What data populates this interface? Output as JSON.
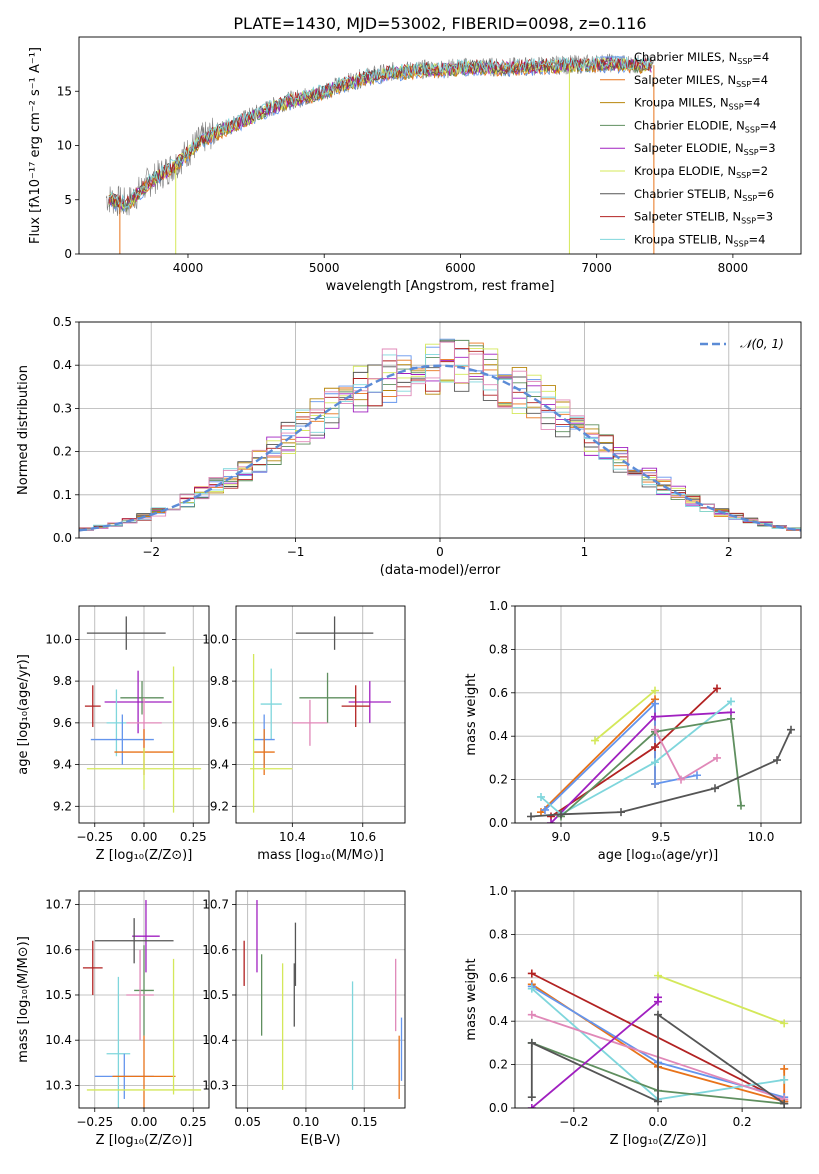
{
  "title": "PLATE=1430, MJD=53002, FIBERID=0098, z=0.116",
  "colors": {
    "blue": "#6495ed",
    "orange": "#e8731a",
    "brown": "#b8860b",
    "green": "#5f8f5f",
    "purple": "#a020c0",
    "yellow": "#d4e85a",
    "grey": "#555555",
    "red": "#b22222",
    "cyan": "#7fd6dc",
    "pink": "#e088b8",
    "darkgreen": "#4e7e5e"
  },
  "chart_data": [
    {
      "id": "spectrum",
      "type": "line",
      "xlabel": "wavelength [Angstrom, rest frame]",
      "ylabel": "Flux [fλ10⁻¹⁷ erg cm⁻² s⁻¹ A⁻¹]",
      "xlim": [
        3200,
        8500
      ],
      "ylim": [
        0,
        20
      ],
      "xticks": [
        4000,
        5000,
        6000,
        7000,
        8000
      ],
      "yticks": [
        0,
        5,
        10,
        15
      ],
      "legend": "upper-right",
      "series": [
        {
          "name": "Chabrier MILES, N",
          "suffix": "=4",
          "color": "#6495ed"
        },
        {
          "name": "Salpeter MILES, N",
          "suffix": "=4",
          "color": "#e8731a"
        },
        {
          "name": "Kroupa MILES, N",
          "suffix": "=4",
          "color": "#b8860b"
        },
        {
          "name": "Chabrier ELODIE, N",
          "suffix": "=4",
          "color": "#5f8f5f"
        },
        {
          "name": "Salpeter ELODIE, N",
          "suffix": "=3",
          "color": "#a020c0"
        },
        {
          "name": "Kroupa ELODIE, N",
          "suffix": "=2",
          "color": "#d4e85a"
        },
        {
          "name": "Chabrier STELIB, N",
          "suffix": "=6",
          "color": "#555555"
        },
        {
          "name": "Salpeter STELIB, N",
          "suffix": "=3",
          "color": "#b22222"
        },
        {
          "name": "Kroupa STELIB, N",
          "suffix": "=4",
          "color": "#7fd6dc"
        }
      ],
      "legend_sub": "SSP",
      "continuum": {
        "x": [
          3400,
          3550,
          3700,
          3900,
          4100,
          4300,
          4500,
          4700,
          4900,
          5100,
          5300,
          5500,
          5700,
          5900,
          6100,
          6300,
          6500,
          6700,
          6900,
          7100,
          7300,
          7400
        ],
        "y": [
          5.2,
          4.6,
          6.5,
          8.2,
          10.6,
          11.8,
          12.9,
          14.0,
          14.6,
          15.5,
          16.3,
          16.8,
          17.0,
          17.1,
          17.3,
          17.2,
          17.3,
          17.4,
          17.5,
          17.6,
          17.5,
          17.4
        ]
      }
    },
    {
      "id": "residuals",
      "type": "histogram",
      "xlabel": "(data-model)/error",
      "ylabel": "Normed distribution",
      "xlim": [
        -2.5,
        2.5
      ],
      "ylim": [
        0,
        0.5
      ],
      "xticks": [
        -2,
        -1,
        0,
        1,
        2
      ],
      "yticks": [
        0.0,
        0.1,
        0.2,
        0.3,
        0.4,
        0.5
      ],
      "legend_label": "𝒩(0, 1)",
      "grid": true
    },
    {
      "id": "age-vs-Z",
      "type": "scatter",
      "xlabel": "Z [log₁₀(Z/Z⊙)]",
      "ylabel": "age  [log₁₀(age/yr)]",
      "xlim": [
        -0.33,
        0.33
      ],
      "ylim": [
        9.12,
        10.16
      ],
      "xticks": [
        -0.25,
        0.0,
        0.25
      ],
      "yticks": [
        9.2,
        9.4,
        9.6,
        9.8,
        10.0
      ],
      "points": [
        {
          "x": -0.09,
          "y": 10.03,
          "xerr": 0.2,
          "yerr": 0.08,
          "color": "#555555"
        },
        {
          "x": -0.01,
          "y": 9.72,
          "xerr": 0.11,
          "yerr": 0.08,
          "color": "#5f8f5f"
        },
        {
          "x": -0.03,
          "y": 9.7,
          "xerr": 0.17,
          "yerr": 0.15,
          "color": "#a020c0"
        },
        {
          "x": -0.26,
          "y": 9.68,
          "xerr": 0.04,
          "yerr": 0.1,
          "color": "#b22222"
        },
        {
          "x": 0.0,
          "y": 9.6,
          "xerr": 0.09,
          "yerr": 0.12,
          "color": "#e088b8"
        },
        {
          "x": -0.14,
          "y": 9.6,
          "xerr": 0.05,
          "yerr": 0.16,
          "color": "#7fd6dc"
        },
        {
          "x": -0.11,
          "y": 9.52,
          "xerr": 0.16,
          "yerr": 0.12,
          "color": "#6495ed"
        },
        {
          "x": 0.0,
          "y": 9.46,
          "xerr": 0.15,
          "yerr": 0.11,
          "color": "#e8731a"
        },
        {
          "x": 0.0,
          "y": 9.38,
          "xerr": 0.29,
          "yerr": 0.1,
          "color": "#d4e85a"
        },
        {
          "x": 0.15,
          "y": 9.52,
          "xerr": 0.0,
          "yerr": 0.35,
          "color": "#d4e85a"
        }
      ]
    },
    {
      "id": "age-vs-mass",
      "type": "scatter",
      "xlabel": "mass [log₁₀(M/M⊙)]",
      "ylabel": "",
      "xlim": [
        10.24,
        10.72
      ],
      "ylim": [
        9.12,
        10.16
      ],
      "xticks": [
        10.4,
        10.6
      ],
      "yticks": [
        9.2,
        9.4,
        9.6,
        9.8,
        10.0
      ],
      "points": [
        {
          "x": 10.52,
          "y": 10.03,
          "xerr": 0.11,
          "yerr": 0.08,
          "color": "#555555"
        },
        {
          "x": 10.5,
          "y": 9.72,
          "xerr": 0.08,
          "yerr": 0.12,
          "color": "#5f8f5f"
        },
        {
          "x": 10.62,
          "y": 9.7,
          "xerr": 0.06,
          "yerr": 0.1,
          "color": "#a020c0"
        },
        {
          "x": 10.58,
          "y": 9.68,
          "xerr": 0.04,
          "yerr": 0.1,
          "color": "#b22222"
        },
        {
          "x": 10.45,
          "y": 9.6,
          "xerr": 0.05,
          "yerr": 0.11,
          "color": "#e088b8"
        },
        {
          "x": 10.34,
          "y": 9.69,
          "xerr": 0.03,
          "yerr": 0.17,
          "color": "#7fd6dc"
        },
        {
          "x": 10.32,
          "y": 9.52,
          "xerr": 0.03,
          "yerr": 0.12,
          "color": "#6495ed"
        },
        {
          "x": 10.32,
          "y": 9.46,
          "xerr": 0.03,
          "yerr": 0.11,
          "color": "#e8731a"
        },
        {
          "x": 10.34,
          "y": 9.38,
          "xerr": 0.06,
          "yerr": 0.0,
          "color": "#d4e85a"
        },
        {
          "x": 10.29,
          "y": 9.55,
          "xerr": 0.0,
          "yerr": 0.38,
          "color": "#d4e85a"
        }
      ]
    },
    {
      "id": "weight-vs-age",
      "type": "line",
      "xlabel": "age  [log₁₀(age/yr)]",
      "ylabel": "mass weight",
      "xlim": [
        8.77,
        10.2
      ],
      "ylim": [
        0,
        1
      ],
      "xticks": [
        9.0,
        9.5,
        10.0
      ],
      "yticks": [
        0.0,
        0.2,
        0.4,
        0.6,
        0.8,
        1.0
      ],
      "series": [
        {
          "color": "#d4e85a",
          "x": [
            9.17,
            9.47
          ],
          "y": [
            0.38,
            0.61
          ]
        },
        {
          "color": "#e8731a",
          "x": [
            8.9,
            9.47,
            9.47
          ],
          "y": [
            0.05,
            0.57,
            0.18
          ]
        },
        {
          "color": "#6495ed",
          "x": [
            8.92,
            9.47,
            9.47,
            9.68
          ],
          "y": [
            0.06,
            0.55,
            0.18,
            0.22
          ]
        },
        {
          "color": "#b22222",
          "x": [
            8.95,
            9.47,
            9.78
          ],
          "y": [
            0.03,
            0.35,
            0.62
          ]
        },
        {
          "color": "#a020c0",
          "x": [
            8.95,
            9.47,
            9.85
          ],
          "y": [
            0.0,
            0.49,
            0.51
          ]
        },
        {
          "color": "#7fd6dc",
          "x": [
            8.9,
            9.0,
            9.47,
            9.85
          ],
          "y": [
            0.12,
            0.04,
            0.28,
            0.56
          ]
        },
        {
          "color": "#5f8f5f",
          "x": [
            9.0,
            9.47,
            9.85,
            9.9
          ],
          "y": [
            0.03,
            0.42,
            0.48,
            0.08
          ]
        },
        {
          "color": "#e088b8",
          "x": [
            9.47,
            9.6,
            9.78
          ],
          "y": [
            0.43,
            0.2,
            0.3
          ]
        },
        {
          "color": "#555555",
          "x": [
            8.85,
            9.0,
            9.3,
            9.77,
            10.08,
            10.15
          ],
          "y": [
            0.03,
            0.04,
            0.05,
            0.16,
            0.29,
            0.43
          ]
        }
      ]
    },
    {
      "id": "mass-vs-Z",
      "type": "scatter",
      "xlabel": "Z [log₁₀(Z/Z⊙)]",
      "ylabel": "mass [log₁₀(M/M⊙)]",
      "xlim": [
        -0.33,
        0.33
      ],
      "ylim": [
        10.25,
        10.73
      ],
      "xticks": [
        -0.25,
        0.0,
        0.25
      ],
      "yticks": [
        10.3,
        10.4,
        10.5,
        10.6,
        10.7
      ],
      "points": [
        {
          "x": 0.01,
          "y": 10.63,
          "xerr": 0.07,
          "yerr": 0.08,
          "color": "#a020c0"
        },
        {
          "x": -0.05,
          "y": 10.62,
          "xerr": 0.2,
          "yerr": 0.05,
          "color": "#555555"
        },
        {
          "x": -0.26,
          "y": 10.56,
          "xerr": 0.05,
          "yerr": 0.06,
          "color": "#b22222"
        },
        {
          "x": 0.0,
          "y": 10.51,
          "xerr": 0.05,
          "yerr": 0.1,
          "color": "#5f8f5f"
        },
        {
          "x": -0.02,
          "y": 10.5,
          "xerr": 0.07,
          "yerr": 0.1,
          "color": "#e088b8"
        },
        {
          "x": -0.13,
          "y": 10.37,
          "xerr": 0.06,
          "yerr": 0.17,
          "color": "#7fd6dc"
        },
        {
          "x": -0.1,
          "y": 10.32,
          "xerr": 0.15,
          "yerr": 0.05,
          "color": "#6495ed"
        },
        {
          "x": 0.0,
          "y": 10.32,
          "xerr": 0.16,
          "yerr": 0.09,
          "color": "#e8731a"
        },
        {
          "x": 0.0,
          "y": 10.29,
          "xerr": 0.29,
          "yerr": 0.0,
          "color": "#d4e85a"
        },
        {
          "x": 0.15,
          "y": 10.43,
          "xerr": 0.0,
          "yerr": 0.15,
          "color": "#d4e85a"
        }
      ]
    },
    {
      "id": "mass-vs-ebv",
      "type": "scatter",
      "xlabel": "E(B-V)",
      "ylabel": "",
      "xlim": [
        0.04,
        0.185
      ],
      "ylim": [
        10.25,
        10.73
      ],
      "xticks": [
        0.05,
        0.1,
        0.15
      ],
      "yticks": [
        10.3,
        10.4,
        10.5,
        10.6,
        10.7
      ],
      "points": [
        {
          "x": 0.047,
          "y": 10.57,
          "yerr": 0.05,
          "color": "#b22222"
        },
        {
          "x": 0.058,
          "y": 10.63,
          "yerr": 0.08,
          "color": "#a020c0"
        },
        {
          "x": 0.062,
          "y": 10.5,
          "yerr": 0.09,
          "color": "#5f8f5f"
        },
        {
          "x": 0.08,
          "y": 10.43,
          "yerr": 0.14,
          "color": "#d4e85a"
        },
        {
          "x": 0.091,
          "y": 10.59,
          "yerr": 0.07,
          "color": "#555555"
        },
        {
          "x": 0.09,
          "y": 10.5,
          "yerr": 0.07,
          "color": "#555555"
        },
        {
          "x": 0.14,
          "y": 10.41,
          "yerr": 0.12,
          "color": "#7fd6dc"
        },
        {
          "x": 0.177,
          "y": 10.5,
          "yerr": 0.08,
          "color": "#e088b8"
        },
        {
          "x": 0.18,
          "y": 10.34,
          "yerr": 0.07,
          "color": "#e8731a"
        },
        {
          "x": 0.182,
          "y": 10.38,
          "yerr": 0.07,
          "color": "#6495ed"
        }
      ]
    },
    {
      "id": "weight-vs-Z",
      "type": "line",
      "xlabel": "Z [log₁₀(Z/Z⊙)]",
      "ylabel": "mass weight",
      "xlim": [
        -0.34,
        0.34
      ],
      "ylim": [
        0,
        1
      ],
      "xticks": [
        -0.2,
        0.0,
        0.2
      ],
      "yticks": [
        0.0,
        0.2,
        0.4,
        0.6,
        0.8,
        1.0
      ],
      "series": [
        {
          "color": "#d4e85a",
          "x": [
            0.0,
            0.3
          ],
          "y": [
            0.61,
            0.39
          ]
        },
        {
          "color": "#b22222",
          "x": [
            -0.3,
            0.3
          ],
          "y": [
            0.62,
            0.03
          ]
        },
        {
          "color": "#e8731a",
          "x": [
            -0.3,
            0.0,
            0.3,
            0.3
          ],
          "y": [
            0.57,
            0.19,
            0.03,
            0.18
          ]
        },
        {
          "color": "#6495ed",
          "x": [
            -0.3,
            0.0,
            0.3
          ],
          "y": [
            0.56,
            0.21,
            0.05
          ]
        },
        {
          "color": "#7fd6dc",
          "x": [
            -0.3,
            0.0,
            0.3
          ],
          "y": [
            0.55,
            0.04,
            0.13
          ]
        },
        {
          "color": "#e088b8",
          "x": [
            -0.3,
            0.3
          ],
          "y": [
            0.43,
            0.04
          ]
        },
        {
          "color": "#5f8f5f",
          "x": [
            -0.3,
            0.0,
            0.3
          ],
          "y": [
            0.3,
            0.08,
            0.02
          ]
        },
        {
          "color": "#a020c0",
          "x": [
            -0.3,
            0.0,
            0.0
          ],
          "y": [
            0.0,
            0.49,
            0.51
          ]
        },
        {
          "color": "#555555",
          "x": [
            -0.3,
            -0.3,
            0.0,
            0.0,
            0.3
          ],
          "y": [
            0.05,
            0.3,
            0.03,
            0.43,
            0.02
          ]
        }
      ]
    }
  ]
}
